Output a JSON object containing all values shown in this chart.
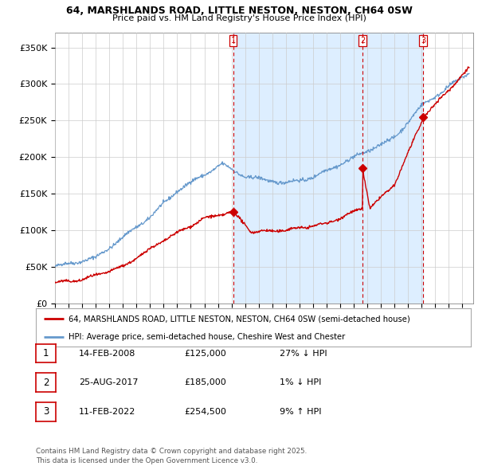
{
  "title_line1": "64, MARSHLANDS ROAD, LITTLE NESTON, NESTON, CH64 0SW",
  "title_line2": "Price paid vs. HM Land Registry's House Price Index (HPI)",
  "ylim": [
    0,
    370000
  ],
  "yticks": [
    0,
    50000,
    100000,
    150000,
    200000,
    250000,
    300000,
    350000
  ],
  "ytick_labels": [
    "£0",
    "£50K",
    "£100K",
    "£150K",
    "£200K",
    "£250K",
    "£300K",
    "£350K"
  ],
  "xlim_start": 1995.0,
  "xlim_end": 2025.8,
  "sale_dates": [
    2008.12,
    2017.65,
    2022.12
  ],
  "sale_prices": [
    125000,
    185000,
    254500
  ],
  "sale_labels": [
    "1",
    "2",
    "3"
  ],
  "vline_color": "#cc0000",
  "hpi_color": "#6699cc",
  "shade_color": "#ddeeff",
  "sale_color": "#cc0000",
  "dot_color": "#cc0000",
  "legend_box_entries": [
    "64, MARSHLANDS ROAD, LITTLE NESTON, NESTON, CH64 0SW (semi-detached house)",
    "HPI: Average price, semi-detached house, Cheshire West and Chester"
  ],
  "table_entries": [
    {
      "num": "1",
      "date": "14-FEB-2008",
      "price": "£125,000",
      "hpi": "27% ↓ HPI"
    },
    {
      "num": "2",
      "date": "25-AUG-2017",
      "price": "£185,000",
      "hpi": "1% ↓ HPI"
    },
    {
      "num": "3",
      "date": "11-FEB-2022",
      "price": "£254,500",
      "hpi": "9% ↑ HPI"
    }
  ],
  "footer": "Contains HM Land Registry data © Crown copyright and database right 2025.\nThis data is licensed under the Open Government Licence v3.0.",
  "bg_color": "#ffffff",
  "grid_color": "#cccccc"
}
